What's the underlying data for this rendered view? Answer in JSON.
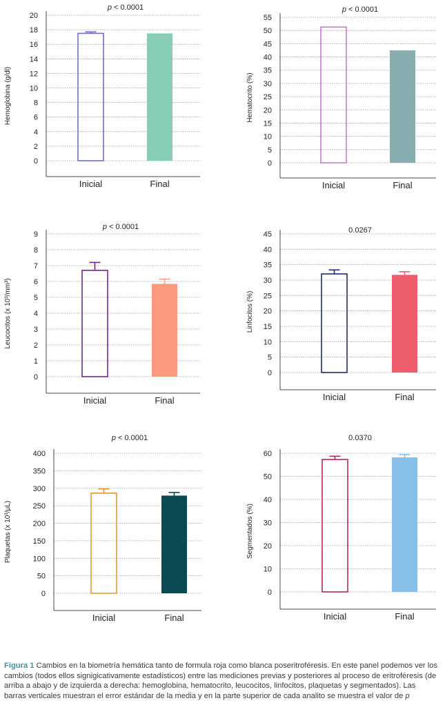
{
  "chart_data": [
    {
      "type": "bar",
      "ptext_italic": "p",
      "ptext_rest": " < 0.0001",
      "ylabel": "Hemoglobina (g/dl)",
      "categories": [
        "Inicial",
        "Final"
      ],
      "values": [
        17.5,
        17.5
      ],
      "errors": [
        0.2,
        0
      ],
      "ylim": [
        0,
        20
      ],
      "yticks": [
        0,
        2,
        4,
        6,
        8,
        10,
        12,
        14,
        16,
        18,
        20
      ],
      "colors": [
        "#6f6fc8",
        "#86cdb4"
      ],
      "fills": [
        false,
        true
      ],
      "grid": true
    },
    {
      "type": "bar",
      "ptext_italic": "p",
      "ptext_rest": " < 0.0001",
      "ylabel": "Hematocrito (%)",
      "categories": [
        "Inicial",
        "Final"
      ],
      "values": [
        51.3,
        42.5
      ],
      "errors": [
        0,
        0
      ],
      "ylim": [
        0,
        55
      ],
      "yticks": [
        0,
        5,
        10,
        15,
        20,
        25,
        30,
        35,
        40,
        45,
        50,
        55
      ],
      "colors": [
        "#c17fcb",
        "#88adb0"
      ],
      "fills": [
        false,
        true
      ],
      "grid": true
    },
    {
      "type": "bar",
      "ptext_italic": "p",
      "ptext_rest": " < 0.0001",
      "ylabel": "Leucocitos (x 10³/mm³)",
      "categories": [
        "Inicial",
        "Final"
      ],
      "values": [
        6.7,
        5.85
      ],
      "errors": [
        0.5,
        0.3
      ],
      "ylim": [
        0,
        9
      ],
      "yticks": [
        0,
        1,
        2,
        3,
        4,
        5,
        6,
        7,
        8,
        9
      ],
      "colors": [
        "#7b1f96",
        "#f79a7e"
      ],
      "fills": [
        false,
        true
      ],
      "grid": true
    },
    {
      "type": "bar",
      "ptext_italic": "",
      "ptext_rest": "0.0267",
      "ylabel": "Linfocitos (%)",
      "categories": [
        "Inicial",
        "Final"
      ],
      "values": [
        32,
        31.7
      ],
      "errors": [
        1.3,
        1.0
      ],
      "ylim": [
        0,
        45
      ],
      "yticks": [
        0,
        5,
        10,
        15,
        20,
        25,
        30,
        35,
        40,
        45
      ],
      "colors": [
        "#1e2a6e",
        "#ee5d6c"
      ],
      "fills": [
        false,
        true
      ],
      "grid": true
    },
    {
      "type": "bar",
      "ptext_italic": "p",
      "ptext_rest": " < 0.0001",
      "ylabel": "Plaquetas (x 10³/μL)",
      "categories": [
        "Inicial",
        "Final"
      ],
      "values": [
        286,
        279
      ],
      "errors": [
        12,
        9
      ],
      "ylim": [
        0,
        400
      ],
      "yticks": [
        0,
        50,
        100,
        150,
        200,
        250,
        300,
        350,
        400
      ],
      "colors": [
        "#e09a2c",
        "#0b4a52"
      ],
      "fills": [
        false,
        true
      ],
      "grid": true
    },
    {
      "type": "bar",
      "ptext_italic": "",
      "ptext_rest": "0.0370",
      "ylabel": "Segmentados (%)",
      "categories": [
        "Inicial",
        "Final"
      ],
      "values": [
        57.3,
        58.2
      ],
      "errors": [
        1.4,
        1.2
      ],
      "ylim": [
        0,
        60
      ],
      "yticks": [
        0,
        10,
        20,
        30,
        40,
        50,
        60
      ],
      "colors": [
        "#b42563",
        "#86c0e8"
      ],
      "fills": [
        false,
        true
      ],
      "grid": true
    }
  ],
  "caption": {
    "label": "Figura 1",
    "text_before_p": " Cambios en la biometría hemática tanto de formula roja como blanca poseritroféresis. En este panel podemos ver los cambios (todos ellos signigicativamente estadísticos) entre las mediciones previas y posteriores al proceso de eritroféresis (de arriba a abajo  y de izquierda a derecha: hemoglobina, hematocrito, leucocitos, linfocitos, plaquetas y segmentados). Las barras verticales muestran el error estándar de la media y en la parte superior de cada analito se muestra el valor de ",
    "p_letter": "p"
  }
}
